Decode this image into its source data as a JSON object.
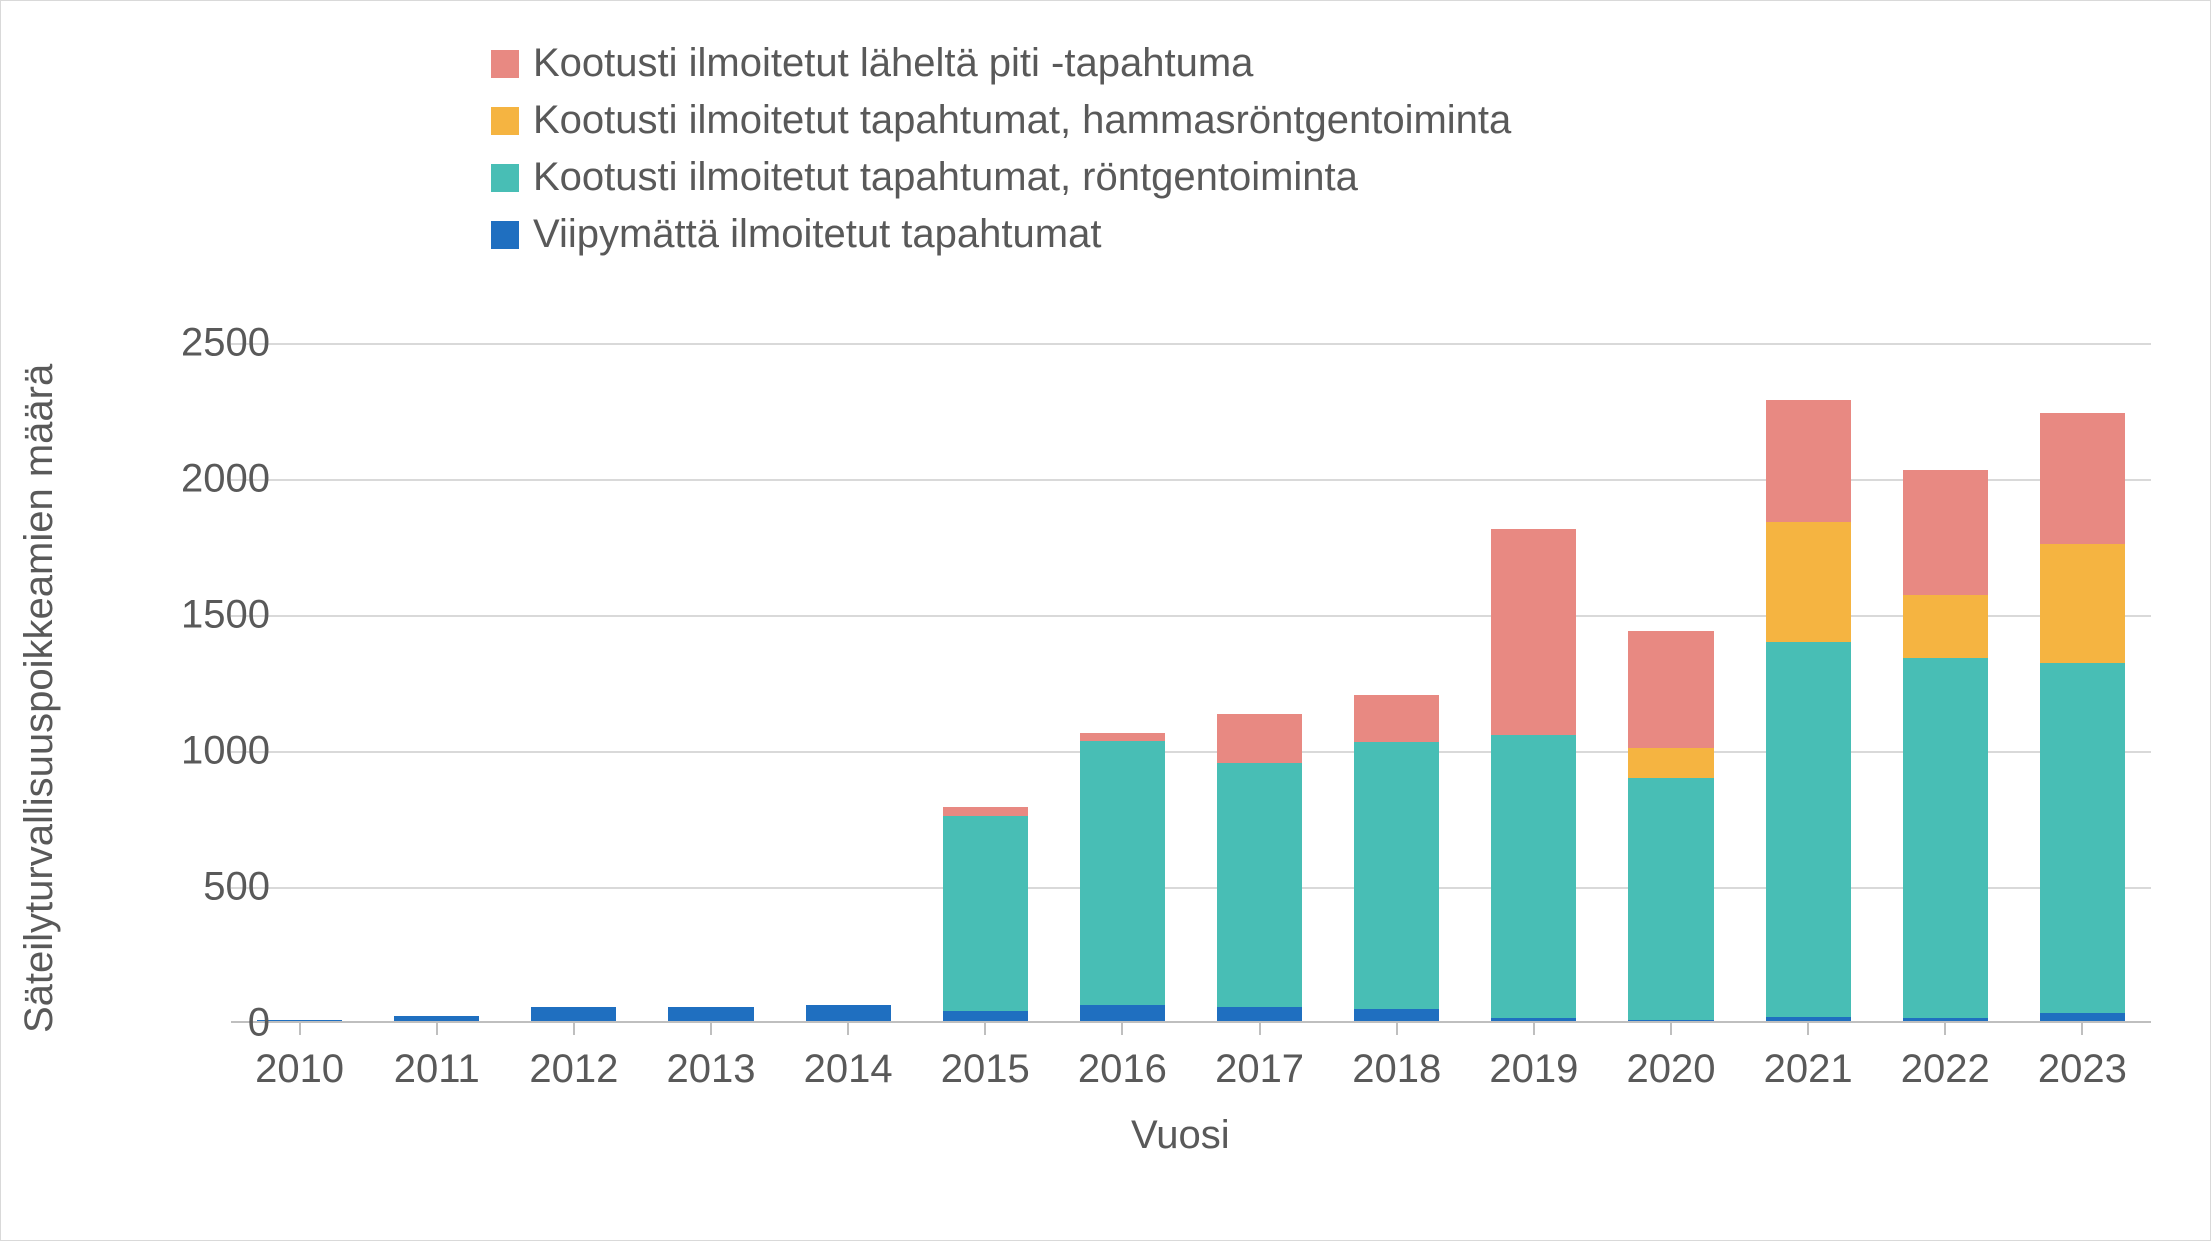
{
  "chart": {
    "type": "stacked-bar",
    "background_color": "#ffffff",
    "border_color": "#d9d9d9",
    "font_family": "Arial",
    "label_color": "#595959",
    "label_fontsize": 40,
    "y_axis_title": "Säteilyturvallisuuspoikkeamien määrä",
    "x_axis_title": "Vuosi",
    "ylim": [
      0,
      2500
    ],
    "ytick_step": 500,
    "y_ticks": [
      0,
      500,
      1000,
      1500,
      2000,
      2500
    ],
    "gridline_color": "#d9d9d9",
    "axis_line_color": "#bfbfbf",
    "categories": [
      "2010",
      "2011",
      "2012",
      "2013",
      "2014",
      "2015",
      "2016",
      "2017",
      "2018",
      "2019",
      "2020",
      "2021",
      "2022",
      "2023"
    ],
    "bar_width_ratio": 0.62,
    "series": [
      {
        "key": "s1",
        "label": "Kootusti ilmoitetut läheltä piti -tapahtuma",
        "color": "#e88982",
        "values": [
          0,
          0,
          0,
          0,
          0,
          30,
          30,
          180,
          175,
          760,
          430,
          450,
          460,
          480
        ]
      },
      {
        "key": "s2",
        "label": "Kootusti ilmoitetut tapahtumat, hammasröntgentoiminta",
        "color": "#f5b441",
        "values": [
          0,
          0,
          0,
          0,
          0,
          0,
          0,
          0,
          0,
          0,
          110,
          440,
          230,
          440
        ]
      },
      {
        "key": "s3",
        "label": "Kootusti ilmoitetut tapahtumat, röntgentoiminta",
        "color": "#48beb5",
        "values": [
          0,
          0,
          0,
          0,
          0,
          720,
          970,
          900,
          980,
          1040,
          890,
          1380,
          1325,
          1285
        ]
      },
      {
        "key": "s4",
        "label": "Viipymättä ilmoitetut tapahtumat",
        "color": "#1f6fc0",
        "values": [
          5,
          20,
          50,
          50,
          60,
          35,
          60,
          50,
          45,
          10,
          5,
          15,
          10,
          30
        ]
      }
    ],
    "legend_order": [
      "s1",
      "s2",
      "s3",
      "s4"
    ],
    "stack_order": [
      "s4",
      "s3",
      "s2",
      "s1"
    ]
  }
}
